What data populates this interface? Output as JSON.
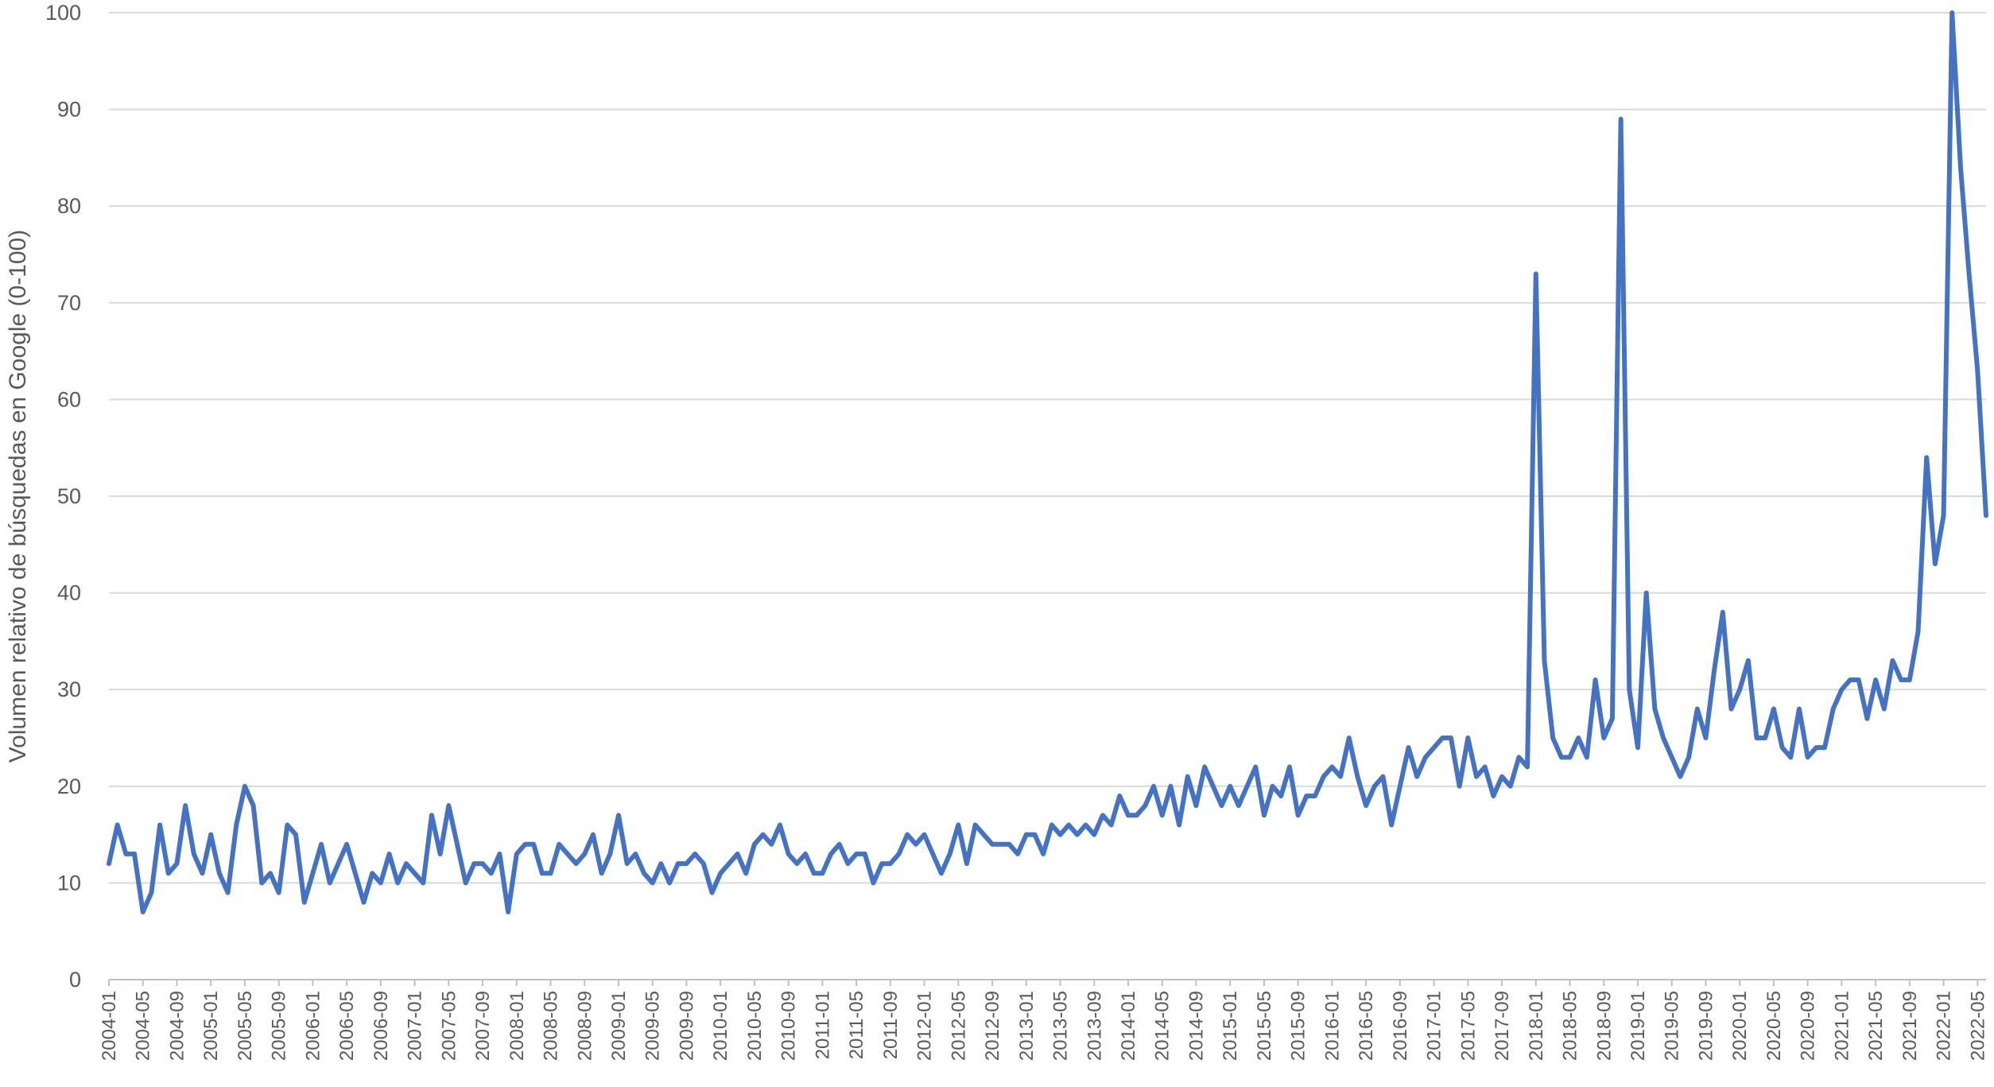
{
  "chart_data": {
    "type": "line",
    "title": "",
    "xlabel": "",
    "ylabel": "Volumen relativo de búsquedas en Google (0-100)",
    "ylim": [
      0,
      100
    ],
    "yticks": [
      0,
      10,
      20,
      30,
      40,
      50,
      60,
      70,
      80,
      90,
      100
    ],
    "grid": true,
    "legend": "none",
    "colors": {
      "series": "#4472c4",
      "grid": "#d9d9d9",
      "text": "#595959"
    },
    "x_tick_labels": [
      "2004-01",
      "2004-05",
      "2004-09",
      "2005-01",
      "2005-05",
      "2005-09",
      "2006-01",
      "2006-05",
      "2006-09",
      "2007-01",
      "2007-05",
      "2007-09",
      "2008-01",
      "2008-05",
      "2008-09",
      "2009-01",
      "2009-05",
      "2009-09",
      "2010-01",
      "2010-05",
      "2010-09",
      "2011-01",
      "2011-05",
      "2011-09",
      "2012-01",
      "2012-05",
      "2012-09",
      "2013-01",
      "2013-05",
      "2013-09",
      "2014-01",
      "2014-05",
      "2014-09",
      "2015-01",
      "2015-05",
      "2015-09",
      "2016-01",
      "2016-05",
      "2016-09",
      "2017-01",
      "2017-05",
      "2017-09",
      "2018-01",
      "2018-05",
      "2018-09",
      "2019-01",
      "2019-05",
      "2019-09",
      "2020-01",
      "2020-05",
      "2020-09",
      "2021-01",
      "2021-05",
      "2021-09",
      "2022-01",
      "2022-05"
    ],
    "x_start": "2004-01",
    "series": [
      {
        "values": [
          12,
          16,
          13,
          13,
          7,
          9,
          16,
          11,
          12,
          18,
          13,
          11,
          15,
          11,
          9,
          16,
          20,
          18,
          10,
          11,
          9,
          16,
          15,
          8,
          11,
          14,
          10,
          12,
          14,
          11,
          8,
          11,
          10,
          13,
          10,
          12,
          11,
          10,
          17,
          13,
          18,
          14,
          10,
          12,
          12,
          11,
          13,
          7,
          13,
          14,
          14,
          11,
          11,
          14,
          13,
          12,
          13,
          15,
          11,
          13,
          17,
          12,
          13,
          11,
          10,
          12,
          10,
          12,
          12,
          13,
          12,
          9,
          11,
          12,
          13,
          11,
          14,
          15,
          14,
          16,
          13,
          12,
          13,
          11,
          11,
          13,
          14,
          12,
          13,
          13,
          10,
          12,
          12,
          13,
          15,
          14,
          15,
          13,
          11,
          13,
          16,
          12,
          16,
          15,
          14,
          14,
          14,
          13,
          15,
          15,
          13,
          16,
          15,
          16,
          15,
          16,
          15,
          17,
          16,
          19,
          17,
          17,
          18,
          20,
          17,
          20,
          16,
          21,
          18,
          22,
          20,
          18,
          20,
          18,
          20,
          22,
          17,
          20,
          19,
          22,
          17,
          19,
          19,
          21,
          22,
          21,
          25,
          21,
          18,
          20,
          21,
          16,
          20,
          24,
          21,
          23,
          24,
          25,
          25,
          20,
          25,
          21,
          22,
          19,
          21,
          20,
          23,
          22,
          73,
          33,
          25,
          23,
          23,
          25,
          23,
          31,
          25,
          27,
          89,
          30,
          24,
          40,
          28,
          25,
          23,
          21,
          23,
          28,
          25,
          32,
          38,
          28,
          30,
          33,
          25,
          25,
          28,
          24,
          23,
          28,
          23,
          24,
          24,
          28,
          30,
          31,
          31,
          27,
          31,
          28,
          33,
          31,
          31,
          36,
          54,
          43,
          48,
          100,
          84,
          73,
          63,
          48
        ]
      }
    ]
  }
}
